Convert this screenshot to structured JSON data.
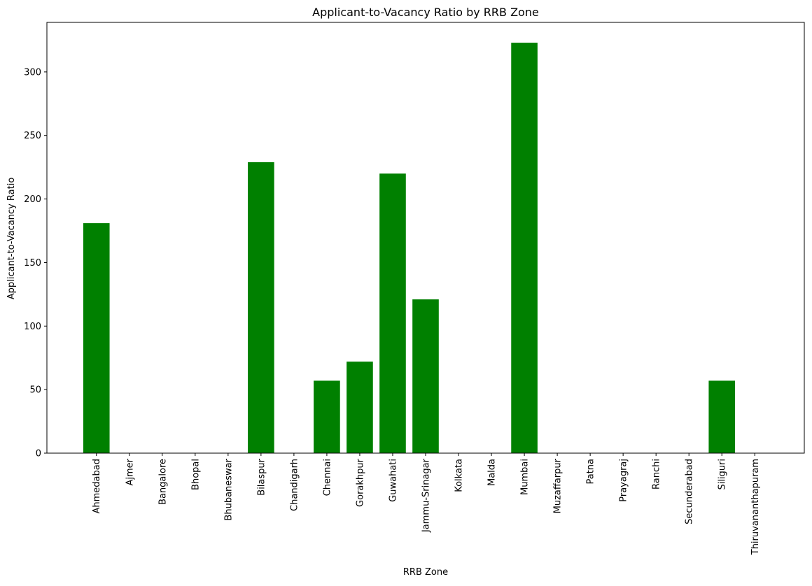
{
  "chart_data": {
    "type": "bar",
    "title": "Applicant-to-Vacancy Ratio by RRB Zone",
    "xlabel": "RRB Zone",
    "ylabel": "Applicant-to-Vacancy Ratio",
    "categories": [
      "Ahmedabad",
      "Ajmer",
      "Bangalore",
      "Bhopal",
      "Bhubaneswar",
      "Bilaspur",
      "Chandigarh",
      "Chennai",
      "Gorakhpur",
      "Guwahati",
      "Jammu-Srinagar",
      "Kolkata",
      "Malda",
      "Mumbai",
      "Muzaffarpur",
      "Patna",
      "Prayagraj",
      "Ranchi",
      "Secunderabad",
      "Siliguri",
      "Thiruvananthapuram"
    ],
    "values": [
      181,
      0,
      0,
      0,
      0,
      229,
      0,
      57,
      72,
      220,
      121,
      0,
      0,
      323,
      0,
      0,
      0,
      0,
      0,
      57,
      0
    ],
    "ylim": [
      0,
      339
    ],
    "yticks": [
      0,
      50,
      100,
      150,
      200,
      250,
      300
    ],
    "bar_color": "#008000",
    "grid": false,
    "legend": "none"
  }
}
